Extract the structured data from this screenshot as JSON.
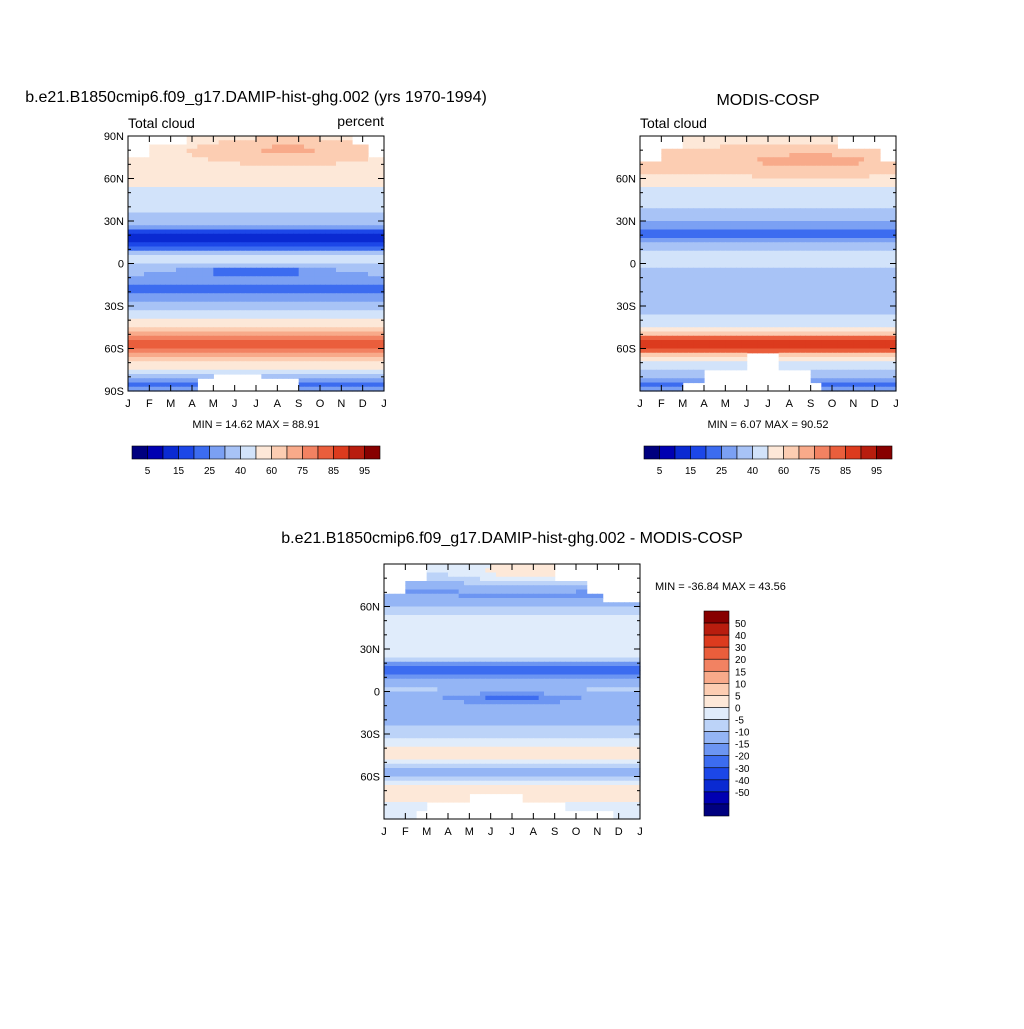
{
  "figure_title_top_left": "b.e21.B1850cmip6.f09_g17.DAMIP-hist-ghg.002 (yrs 1970-1994)",
  "figure_title_top_right": "MODIS-COSP",
  "figure_title_bottom": "b.e21.B1850cmip6.f09_g17.DAMIP-hist-ghg.002 - MODIS-COSP",
  "colors": {
    "abs_levels": [
      "#00007f",
      "#0000b2",
      "#0a2ad2",
      "#1c47e8",
      "#3c6cf0",
      "#7ba0f3",
      "#a8c3f6",
      "#d2e3fa",
      "#fde8d8",
      "#fccdb2",
      "#f8aa8a",
      "#f28262",
      "#ea5e3c",
      "#dc3b1e",
      "#b81d0e",
      "#870000"
    ],
    "diff_levels": [
      "#00007f",
      "#0000b2",
      "#0a2ad2",
      "#1c47e8",
      "#3c6cf0",
      "#6c95f2",
      "#94b5f5",
      "#bcd3f8",
      "#e0ecfb",
      "#fde8d8",
      "#fccdb2",
      "#f8aa8a",
      "#f28262",
      "#ea5e3c",
      "#dc3b1e",
      "#b81d0e",
      "#870000"
    ]
  },
  "chart_data": [
    {
      "type": "heatmap",
      "title": "b.e21.B1850cmip6.f09_g17.DAMIP-hist-ghg.002 (yrs 1970-1994)",
      "left_label": "Total cloud",
      "right_label": "percent",
      "x_ticks": [
        "J",
        "F",
        "M",
        "A",
        "M",
        "J",
        "J",
        "A",
        "S",
        "O",
        "N",
        "D",
        "J"
      ],
      "y_ticks": [
        "90N",
        "60N",
        "30N",
        "0",
        "30S",
        "60S",
        "90S"
      ],
      "y_tick_values": [
        90,
        60,
        30,
        0,
        -30,
        -60,
        -90
      ],
      "xlim": [
        0,
        12
      ],
      "ylim": [
        -90,
        90
      ],
      "minmax_text": "MIN =  14.62 MAX =  88.91",
      "min": 14.62,
      "max": 88.91,
      "colorbar_labels": [
        "5",
        "15",
        "25",
        "40",
        "60",
        "75",
        "85",
        "95"
      ],
      "colorbar_orientation": "horizontal",
      "field": "model"
    },
    {
      "type": "heatmap",
      "title": "MODIS-COSP",
      "left_label": "Total cloud",
      "x_ticks": [
        "J",
        "F",
        "M",
        "A",
        "M",
        "J",
        "J",
        "A",
        "S",
        "O",
        "N",
        "D",
        "J"
      ],
      "y_ticks": [
        "60N",
        "30N",
        "0",
        "30S",
        "60S"
      ],
      "y_tick_values": [
        60,
        30,
        0,
        -30,
        -60
      ],
      "xlim": [
        0,
        12
      ],
      "ylim": [
        -90,
        90
      ],
      "minmax_text": "MIN =   6.07 MAX =  90.52",
      "min": 6.07,
      "max": 90.52,
      "colorbar_labels": [
        "5",
        "15",
        "25",
        "40",
        "60",
        "75",
        "85",
        "95"
      ],
      "colorbar_orientation": "horizontal",
      "field": "obs"
    },
    {
      "type": "heatmap",
      "title": "b.e21.B1850cmip6.f09_g17.DAMIP-hist-ghg.002 - MODIS-COSP",
      "x_ticks": [
        "J",
        "F",
        "M",
        "A",
        "M",
        "J",
        "J",
        "A",
        "S",
        "O",
        "N",
        "D",
        "J"
      ],
      "y_ticks": [
        "60N",
        "30N",
        "0",
        "30S",
        "60S"
      ],
      "y_tick_values": [
        60,
        30,
        0,
        -30,
        -60
      ],
      "xlim": [
        0,
        12
      ],
      "ylim": [
        -90,
        90
      ],
      "minmax_text": "MIN = -36.84 MAX =  43.56",
      "min": -36.84,
      "max": 43.56,
      "colorbar_labels": [
        "50",
        "40",
        "30",
        "20",
        "15",
        "10",
        "5",
        "0",
        "-5",
        "-10",
        "-15",
        "-20",
        "-30",
        "-40",
        "-50"
      ],
      "colorbar_orientation": "vertical",
      "field": "diff"
    }
  ]
}
